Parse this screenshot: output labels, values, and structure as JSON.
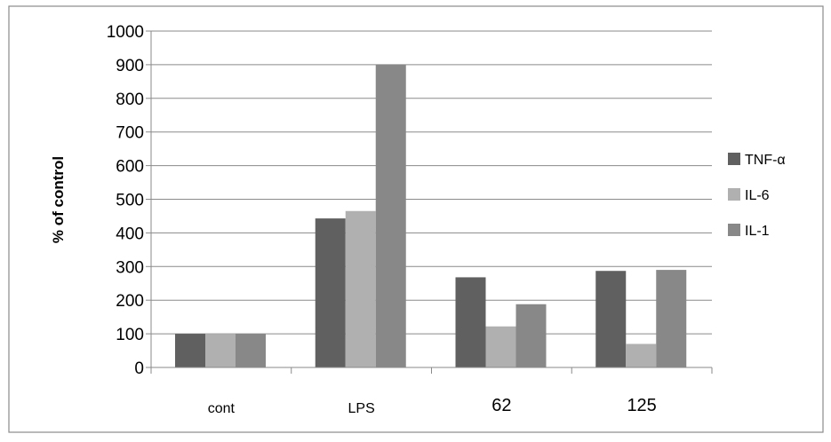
{
  "chart_data": {
    "type": "bar",
    "categories": [
      "cont",
      "LPS",
      "62",
      "125"
    ],
    "series": [
      {
        "name": "TNF-α",
        "values": [
          100,
          443,
          268,
          287
        ],
        "color": "#606060"
      },
      {
        "name": "IL-6",
        "values": [
          100,
          465,
          122,
          70
        ],
        "color": "#b0b0b0"
      },
      {
        "name": "IL-1",
        "values": [
          100,
          900,
          188,
          290
        ],
        "color": "#888888"
      }
    ],
    "title": "",
    "xlabel": "",
    "ylabel": "% of control",
    "ylim": [
      0,
      1000
    ],
    "yticks": [
      "0",
      "100",
      "200",
      "300",
      "400",
      "500",
      "600",
      "700",
      "800",
      "900",
      "1000"
    ],
    "grid": true,
    "legend": "right"
  }
}
